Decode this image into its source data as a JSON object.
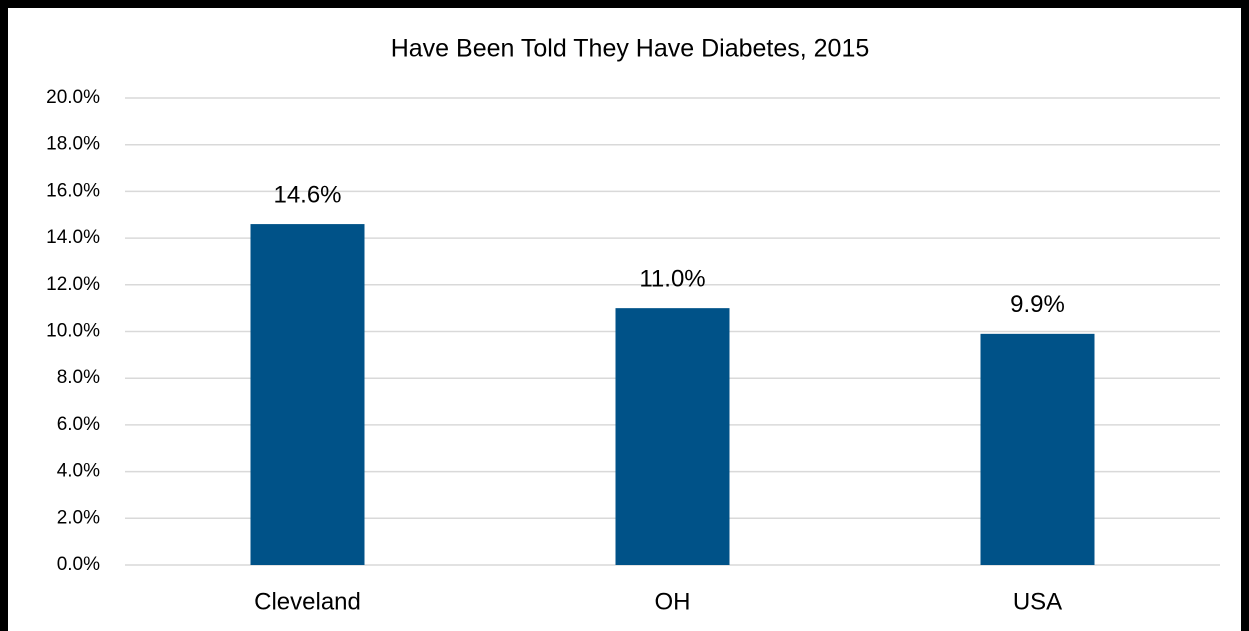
{
  "chart_data": {
    "type": "bar",
    "title": "Have Been Told They Have Diabetes, 2015",
    "categories": [
      "Cleveland",
      "OH",
      "USA"
    ],
    "values": [
      14.6,
      11.0,
      9.9
    ],
    "value_labels": [
      "14.6%",
      "11.0%",
      "9.9%"
    ],
    "color": "#005288",
    "ylim": [
      0,
      20
    ],
    "yticks": [
      {
        "value": 0,
        "label": "0.0%"
      },
      {
        "value": 2,
        "label": "2.0%"
      },
      {
        "value": 4,
        "label": "4.0%"
      },
      {
        "value": 6,
        "label": "6.0%"
      },
      {
        "value": 8,
        "label": "8.0%"
      },
      {
        "value": 10,
        "label": "10.0%"
      },
      {
        "value": 12,
        "label": "12.0%"
      },
      {
        "value": 14,
        "label": "14.0%"
      },
      {
        "value": 16,
        "label": "16.0%"
      },
      {
        "value": 18,
        "label": "18.0%"
      },
      {
        "value": 20,
        "label": "20.0%"
      }
    ],
    "grid": true
  }
}
